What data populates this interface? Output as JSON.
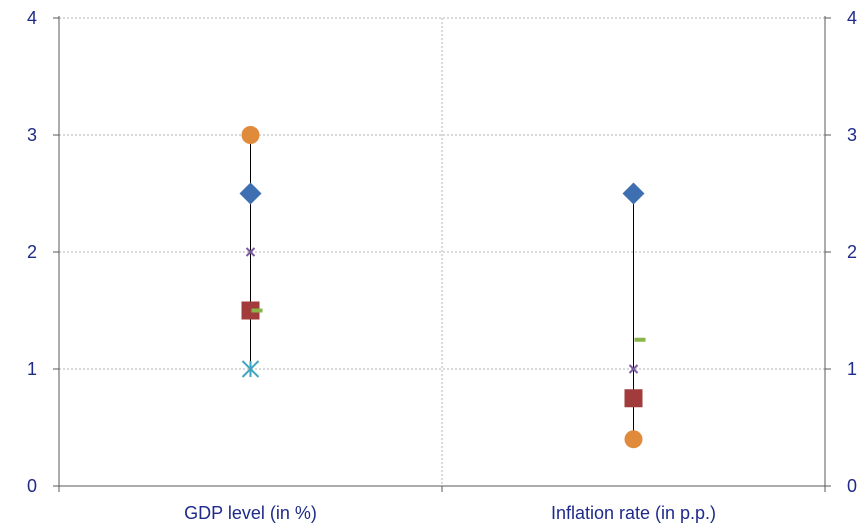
{
  "chart_data": {
    "type": "scatter",
    "categories": [
      "GDP level (in %)",
      "Inflation rate (in p.p.)"
    ],
    "ylim": [
      0,
      4
    ],
    "yticks": [
      0,
      1,
      2,
      3,
      4
    ],
    "secondary_yticks": [
      0,
      1,
      2,
      3,
      4
    ],
    "grid": true,
    "legend": "none",
    "series": [
      {
        "marker": "circle",
        "color": "#e08a3c",
        "values": [
          3.0,
          0.4
        ]
      },
      {
        "marker": "diamond",
        "color": "#3e6fb0",
        "values": [
          2.5,
          2.5
        ]
      },
      {
        "marker": "x",
        "color": "#7a5aa0",
        "values": [
          2.0,
          1.0
        ]
      },
      {
        "marker": "square",
        "color": "#a23b3b",
        "values": [
          1.5,
          0.75
        ]
      },
      {
        "marker": "dash",
        "color": "#8ab548",
        "values": [
          1.5,
          1.25
        ]
      },
      {
        "marker": "star",
        "color": "#3ea6c0",
        "values": [
          1.0,
          null
        ]
      }
    ],
    "range_lines": [
      {
        "category": "GDP level (in %)",
        "min": 1.0,
        "max": 3.0
      },
      {
        "category": "Inflation rate (in p.p.)",
        "min": 0.4,
        "max": 2.5
      }
    ]
  }
}
